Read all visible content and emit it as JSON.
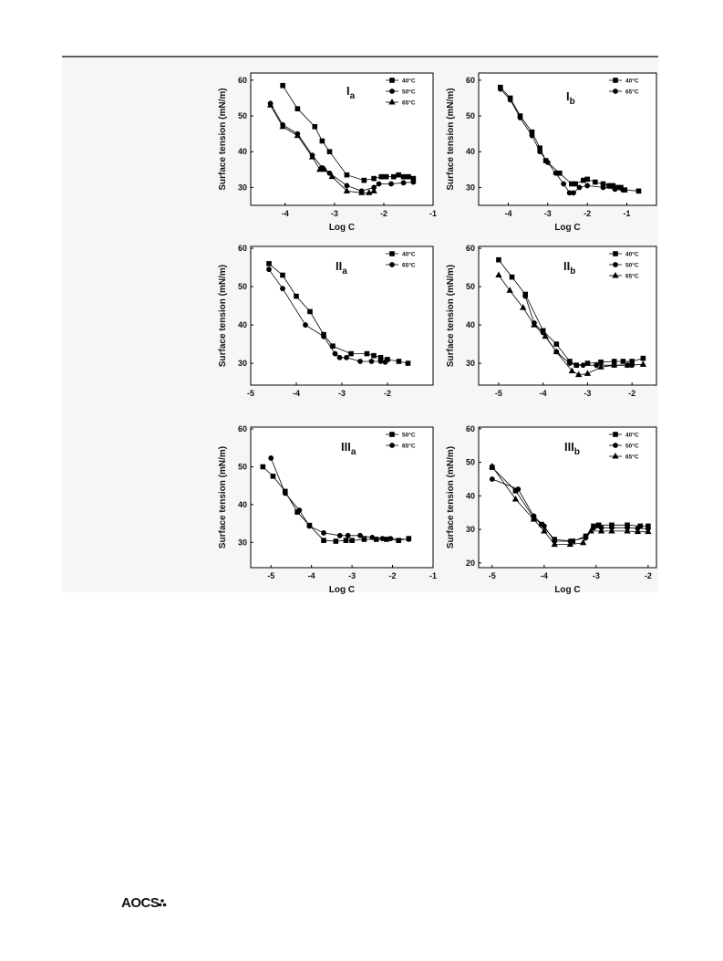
{
  "chart_data": [
    {
      "type": "line",
      "title": "I",
      "title_sub": "a",
      "y_label": "Surface tension (mN/m)",
      "x_label": "Log C",
      "xlim": [
        -4.7,
        -1
      ],
      "xticks": [
        -4,
        -3,
        -2,
        -1
      ],
      "ylim": [
        25,
        62
      ],
      "yticks": [
        30,
        40,
        50,
        60
      ],
      "legend": "upper right",
      "series": [
        {
          "name": "40°C",
          "color": "#000000",
          "marker": "square",
          "x": [
            -4.05,
            -3.75,
            -3.4,
            -3.25,
            -3.1,
            -2.75,
            -2.4,
            -2.2,
            -2.05,
            -1.95,
            -1.8,
            -1.7,
            -1.6,
            -1.5,
            -1.4
          ],
          "values": [
            58.5,
            52,
            47,
            43,
            40,
            33.5,
            32,
            32.5,
            33,
            33,
            33,
            33.5,
            33,
            33,
            32.5
          ]
        },
        {
          "name": "50°C",
          "color": "#000000",
          "marker": "circle",
          "x": [
            -4.3,
            -4.05,
            -3.75,
            -3.45,
            -3.25,
            -3.1,
            -2.75,
            -2.45,
            -2.2,
            -2.1,
            -1.85,
            -1.6,
            -1.4
          ],
          "values": [
            53.5,
            47.5,
            45,
            39,
            35.5,
            34,
            30.5,
            29,
            30,
            31,
            31,
            31.3,
            31.5
          ]
        },
        {
          "name": "65°C",
          "color": "#000000",
          "marker": "triangle",
          "x": [
            -4.3,
            -4.05,
            -3.75,
            -3.45,
            -3.3,
            -3.2,
            -3.05,
            -2.75,
            -2.45,
            -2.3,
            -2.2
          ],
          "values": [
            53,
            47,
            44.5,
            38.5,
            35,
            35,
            33,
            29,
            28.5,
            28.5,
            29
          ]
        }
      ]
    },
    {
      "type": "line",
      "title": "I",
      "title_sub": "b",
      "y_label": "Surface tension (mN/m)",
      "x_label": "Log C",
      "xlim": [
        -4.75,
        -0.25
      ],
      "xticks": [
        -4,
        -3,
        -2,
        -1
      ],
      "ylim": [
        25,
        62
      ],
      "yticks": [
        30,
        40,
        50,
        60
      ],
      "legend": "upper right",
      "series": [
        {
          "name": "40°C",
          "color": "#000000",
          "marker": "square",
          "x": [
            -4.2,
            -3.95,
            -3.7,
            -3.4,
            -3.2,
            -3.05,
            -2.7,
            -2.4,
            -2.3,
            -2.1,
            -2.0,
            -1.8,
            -1.6,
            -1.45,
            -1.35,
            -1.25,
            -1.15,
            -1.05,
            -0.7
          ],
          "values": [
            58,
            55,
            50,
            45.5,
            41,
            37.5,
            34,
            31,
            31,
            32,
            32.3,
            31.5,
            31,
            30.5,
            30.5,
            30,
            30,
            29.3,
            29
          ]
        },
        {
          "name": "65°C",
          "color": "#000000",
          "marker": "circle",
          "x": [
            -4.2,
            -3.95,
            -3.7,
            -3.4,
            -3.2,
            -3.0,
            -2.8,
            -2.6,
            -2.45,
            -2.35,
            -2.2,
            -2.0,
            -1.6,
            -1.3,
            -1.1
          ],
          "values": [
            57.5,
            54.5,
            49.5,
            44.5,
            40,
            37,
            34,
            31,
            28.5,
            28.5,
            30,
            30.5,
            30,
            29.5,
            29.3
          ]
        }
      ]
    },
    {
      "type": "line",
      "title": "II",
      "title_sub": "a",
      "y_label": "Surface tension (mN/m)",
      "xlim": [
        -5,
        -1
      ],
      "xticks": [
        -5,
        -4,
        -3,
        -2
      ],
      "ylim": [
        24.3,
        60.5
      ],
      "yticks": [
        30,
        40,
        50,
        60
      ],
      "legend": "upper right",
      "series": [
        {
          "name": "40°C",
          "color": "#000000",
          "marker": "square",
          "x": [
            -4.6,
            -4.3,
            -4.0,
            -3.7,
            -3.4,
            -3.2,
            -2.8,
            -2.45,
            -2.3,
            -2.15,
            -2.0,
            -1.75,
            -1.55
          ],
          "values": [
            56,
            53,
            47.5,
            43.5,
            37.5,
            34.5,
            32.5,
            32.5,
            32,
            31.5,
            31,
            30.5,
            30
          ]
        },
        {
          "name": "65°C",
          "color": "#000000",
          "marker": "circle",
          "x": [
            -4.6,
            -4.3,
            -3.8,
            -3.4,
            -3.15,
            -3.05,
            -2.9,
            -2.6,
            -2.35,
            -2.15,
            -2.05
          ],
          "values": [
            54.5,
            49.5,
            40,
            37,
            32.5,
            31.5,
            31.5,
            30.5,
            30.5,
            30.5,
            30.3
          ]
        }
      ]
    },
    {
      "type": "line",
      "title": "II",
      "title_sub": "b",
      "y_label": "Surface tension (mN/m)",
      "xlim": [
        -5.45,
        -1.45
      ],
      "xticks": [
        -5,
        -4,
        -3,
        -2
      ],
      "ylim": [
        24.3,
        60.5
      ],
      "yticks": [
        30,
        40,
        50,
        60
      ],
      "legend": "upper right",
      "series": [
        {
          "name": "40°C",
          "color": "#000000",
          "marker": "square",
          "x": [
            -5,
            -4.7,
            -4.4,
            -4.0,
            -3.7,
            -3.4,
            -3.25,
            -3.0,
            -2.7,
            -2.4,
            -2.2,
            -2.0,
            -1.75
          ],
          "values": [
            57,
            52.5,
            48,
            38.5,
            35,
            30.5,
            29.5,
            30,
            30.3,
            30.5,
            30.5,
            30.5,
            31.3
          ]
        },
        {
          "name": "50°C",
          "color": "#000000",
          "marker": "circle",
          "x": [
            -4.4,
            -4.2,
            -4.0,
            -3.7,
            -3.4,
            -3.25,
            -3.1,
            -2.8,
            -2.4,
            -2.1,
            -2.0
          ],
          "values": [
            47.5,
            40.5,
            38,
            33,
            30,
            29.5,
            29.5,
            29.5,
            29.5,
            29.5,
            29.5
          ]
        },
        {
          "name": "65°C",
          "color": "#000000",
          "marker": "triangle",
          "x": [
            -5,
            -4.75,
            -4.45,
            -4.2,
            -3.95,
            -3.7,
            -3.35,
            -3.2,
            -3.0,
            -2.7,
            -2.4,
            -2.1,
            -1.75
          ],
          "values": [
            53,
            49,
            44.5,
            40,
            37,
            33,
            28,
            27,
            27.3,
            29,
            29.5,
            29.5,
            29.7
          ]
        }
      ]
    },
    {
      "type": "line",
      "title": "III",
      "title_sub": "a",
      "y_label": "Surface tension (mN/m)",
      "x_label": "Log C",
      "xlim": [
        -5.5,
        -1
      ],
      "xticks": [
        -5,
        -4,
        -3,
        -2,
        -1
      ],
      "ylim": [
        23.3,
        60.5
      ],
      "yticks": [
        30,
        40,
        50,
        60
      ],
      "legend": "upper right",
      "series": [
        {
          "name": "50°C",
          "color": "#000000",
          "marker": "square",
          "x": [
            -5.2,
            -4.95,
            -4.65,
            -4.35,
            -4.05,
            -3.7,
            -3.4,
            -3.15,
            -3.0,
            -2.7,
            -2.4,
            -2.15,
            -1.85,
            -1.6
          ],
          "values": [
            50,
            47.5,
            43.5,
            38,
            34.5,
            30.5,
            30.3,
            30.5,
            30.5,
            30.8,
            30.8,
            30.8,
            30.5,
            31
          ]
        },
        {
          "name": "65°C",
          "color": "#000000",
          "marker": "circle",
          "x": [
            -5.0,
            -4.65,
            -4.3,
            -4.05,
            -3.7,
            -3.3,
            -3.1,
            -2.8,
            -2.5,
            -2.25,
            -2.05,
            -1.6
          ],
          "values": [
            52.3,
            43,
            38.5,
            34.3,
            32.5,
            31.8,
            31.8,
            31.8,
            31.3,
            31,
            31,
            30.8
          ]
        }
      ]
    },
    {
      "type": "line",
      "title": "III",
      "title_sub": "b",
      "y_label": "Surface tension (mN/m)",
      "x_label": "Log C",
      "xlim": [
        -5.26,
        -1.84
      ],
      "xticks": [
        -5,
        -4,
        -3,
        -2
      ],
      "ylim": [
        18.6,
        60.5
      ],
      "yticks": [
        20,
        30,
        40,
        50,
        60
      ],
      "legend": "upper right",
      "series": [
        {
          "name": "40°C",
          "color": "#000000",
          "marker": "square",
          "x": [
            -5,
            -4.55,
            -4.2,
            -4.05,
            -3.8,
            -3.45,
            -3.2,
            -3.05,
            -2.95,
            -2.7,
            -2.4,
            -2.15,
            -2.0
          ],
          "values": [
            48.5,
            41.5,
            33.5,
            31.5,
            27,
            26.5,
            28,
            31,
            31.3,
            31.3,
            31.3,
            31,
            31
          ]
        },
        {
          "name": "50°C",
          "color": "#000000",
          "marker": "circle",
          "x": [
            -5,
            -4.5,
            -4.2,
            -4.0,
            -3.8,
            -3.5,
            -3.2,
            -3.05,
            -2.9,
            -2.7,
            -2.4,
            -2.2,
            -2.0
          ],
          "values": [
            45,
            42,
            34,
            31,
            26.5,
            26.5,
            27.5,
            30.5,
            30.5,
            30.5,
            30.5,
            30.3,
            30.2
          ]
        },
        {
          "name": "65°C",
          "color": "#000000",
          "marker": "triangle",
          "x": [
            -5,
            -4.55,
            -4.2,
            -4.0,
            -3.8,
            -3.5,
            -3.25,
            -3.1,
            -2.9,
            -2.7,
            -2.4,
            -2.2,
            -2.0
          ],
          "values": [
            48.8,
            39,
            33,
            29.5,
            25.5,
            25.5,
            26,
            29.5,
            29.5,
            29.5,
            29.5,
            29.3,
            29.3
          ]
        }
      ]
    }
  ],
  "footer": {
    "logo": "AOCS"
  }
}
